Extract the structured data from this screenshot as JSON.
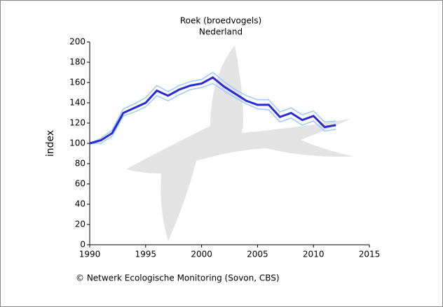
{
  "chart_data": {
    "type": "line",
    "title": "Roek (broedvogels)",
    "subtitle": "Nederland",
    "y_label": "index",
    "footer": "© Netwerk Ecologische Monitoring (Sovon, CBS)",
    "x": [
      1990,
      1991,
      1992,
      1993,
      1994,
      1995,
      1996,
      1997,
      1998,
      1999,
      2000,
      2001,
      2002,
      2003,
      2004,
      2005,
      2006,
      2007,
      2008,
      2009,
      2010,
      2011,
      2012
    ],
    "series": [
      {
        "color": "#99ccff",
        "values": [
          100,
          105,
          113,
          134,
          139,
          145,
          157,
          151,
          157,
          161,
          163,
          170,
          161,
          153,
          147,
          143,
          143,
          131,
          135,
          128,
          132,
          121,
          122
        ]
      },
      {
        "color": "#99ccff",
        "values": [
          100,
          100,
          107,
          127,
          131,
          136,
          147,
          142,
          148,
          153,
          155,
          159,
          152,
          145,
          139,
          134,
          133,
          121,
          125,
          118,
          122,
          112,
          114
        ]
      },
      {
        "color": "#2a2ad6",
        "values": [
          100,
          103,
          110,
          130,
          135,
          140,
          152,
          147,
          153,
          157,
          159,
          165,
          156,
          149,
          142,
          138,
          138,
          126,
          130,
          123,
          127,
          116,
          118
        ]
      }
    ],
    "xlim": [
      1990,
      2015
    ],
    "xticks": [
      1990,
      1995,
      2000,
      2005,
      2010,
      2015
    ],
    "ylim": [
      0,
      200
    ],
    "yticks": [
      0,
      20,
      40,
      60,
      80,
      100,
      120,
      140,
      160,
      180,
      200
    ]
  }
}
